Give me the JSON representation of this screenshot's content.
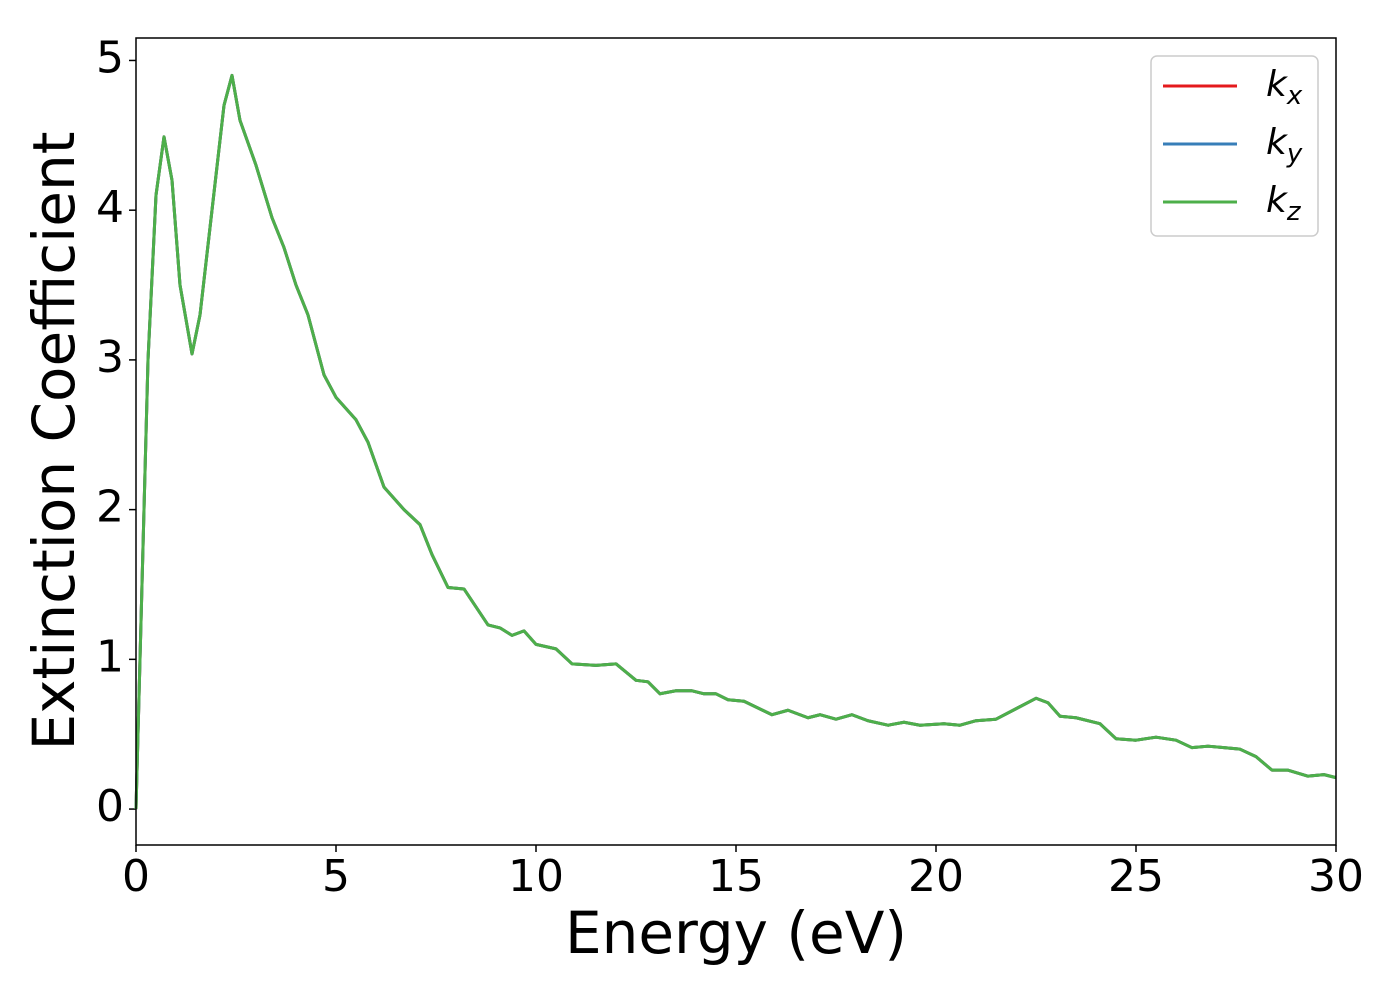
{
  "chart_data": {
    "type": "line",
    "xlabel": "Energy (eV)",
    "ylabel": "Extinction Coefficient",
    "x": [
      0,
      0.1,
      0.3,
      0.5,
      0.7,
      0.9,
      1.1,
      1.4,
      1.6,
      1.9,
      2.2,
      2.4,
      2.6,
      3.0,
      3.4,
      3.7,
      4.0,
      4.3,
      4.7,
      5.0,
      5.5,
      5.8,
      6.2,
      6.7,
      7.1,
      7.4,
      7.8,
      8.2,
      8.5,
      8.8,
      9.1,
      9.4,
      9.7,
      10.0,
      10.5,
      10.9,
      11.5,
      12.0,
      12.5,
      12.8,
      13.1,
      13.5,
      13.9,
      14.2,
      14.5,
      14.8,
      15.2,
      15.9,
      16.3,
      16.8,
      17.1,
      17.5,
      17.9,
      18.3,
      18.8,
      19.2,
      19.6,
      20.2,
      20.6,
      21.0,
      21.5,
      22.0,
      22.5,
      22.8,
      23.1,
      23.5,
      24.1,
      24.5,
      25.0,
      25.5,
      26.0,
      26.4,
      26.8,
      27.2,
      27.6,
      28.0,
      28.4,
      28.8,
      29.3,
      29.7,
      30.0
    ],
    "series": [
      {
        "name": "kx",
        "color": "#e41a1c",
        "values": [
          0,
          1.0,
          3.0,
          4.1,
          4.49,
          4.2,
          3.5,
          3.04,
          3.3,
          4.0,
          4.7,
          4.9,
          4.6,
          4.3,
          3.95,
          3.75,
          3.5,
          3.3,
          2.9,
          2.75,
          2.6,
          2.45,
          2.15,
          2.0,
          1.9,
          1.7,
          1.48,
          1.47,
          1.35,
          1.23,
          1.21,
          1.16,
          1.19,
          1.1,
          1.07,
          0.97,
          0.96,
          0.97,
          0.86,
          0.85,
          0.77,
          0.79,
          0.79,
          0.77,
          0.77,
          0.73,
          0.72,
          0.63,
          0.66,
          0.61,
          0.63,
          0.6,
          0.63,
          0.59,
          0.56,
          0.58,
          0.56,
          0.57,
          0.56,
          0.59,
          0.6,
          0.67,
          0.74,
          0.71,
          0.62,
          0.61,
          0.57,
          0.47,
          0.46,
          0.48,
          0.46,
          0.41,
          0.42,
          0.41,
          0.4,
          0.35,
          0.26,
          0.26,
          0.22,
          0.23,
          0.21
        ]
      },
      {
        "name": "ky",
        "color": "#377eb8",
        "values": [
          0,
          1.0,
          3.0,
          4.1,
          4.49,
          4.2,
          3.5,
          3.04,
          3.3,
          4.0,
          4.7,
          4.9,
          4.6,
          4.3,
          3.95,
          3.75,
          3.5,
          3.3,
          2.9,
          2.75,
          2.6,
          2.45,
          2.15,
          2.0,
          1.9,
          1.7,
          1.48,
          1.47,
          1.35,
          1.23,
          1.21,
          1.16,
          1.19,
          1.1,
          1.07,
          0.97,
          0.96,
          0.97,
          0.86,
          0.85,
          0.77,
          0.79,
          0.79,
          0.77,
          0.77,
          0.73,
          0.72,
          0.63,
          0.66,
          0.61,
          0.63,
          0.6,
          0.63,
          0.59,
          0.56,
          0.58,
          0.56,
          0.57,
          0.56,
          0.59,
          0.6,
          0.67,
          0.74,
          0.71,
          0.62,
          0.61,
          0.57,
          0.47,
          0.46,
          0.48,
          0.46,
          0.41,
          0.42,
          0.41,
          0.4,
          0.35,
          0.26,
          0.26,
          0.22,
          0.23,
          0.21
        ]
      },
      {
        "name": "kz",
        "color": "#4daf4a",
        "values": [
          0,
          1.0,
          3.0,
          4.1,
          4.49,
          4.2,
          3.5,
          3.04,
          3.3,
          4.0,
          4.7,
          4.9,
          4.6,
          4.3,
          3.95,
          3.75,
          3.5,
          3.3,
          2.9,
          2.75,
          2.6,
          2.45,
          2.15,
          2.0,
          1.9,
          1.7,
          1.48,
          1.47,
          1.35,
          1.23,
          1.21,
          1.16,
          1.19,
          1.1,
          1.07,
          0.97,
          0.96,
          0.97,
          0.86,
          0.85,
          0.77,
          0.79,
          0.79,
          0.77,
          0.77,
          0.73,
          0.72,
          0.63,
          0.66,
          0.61,
          0.63,
          0.6,
          0.63,
          0.59,
          0.56,
          0.58,
          0.56,
          0.57,
          0.56,
          0.59,
          0.6,
          0.67,
          0.74,
          0.71,
          0.62,
          0.61,
          0.57,
          0.47,
          0.46,
          0.48,
          0.46,
          0.41,
          0.42,
          0.41,
          0.4,
          0.35,
          0.26,
          0.26,
          0.22,
          0.23,
          0.21
        ]
      }
    ],
    "xlim": [
      0,
      30
    ],
    "xticks": [
      0,
      5,
      10,
      15,
      20,
      25,
      30
    ],
    "ylim": [
      -0.24,
      5.15
    ],
    "yticks": [
      0,
      1,
      2,
      3,
      4,
      5
    ],
    "legend": "upper right"
  }
}
